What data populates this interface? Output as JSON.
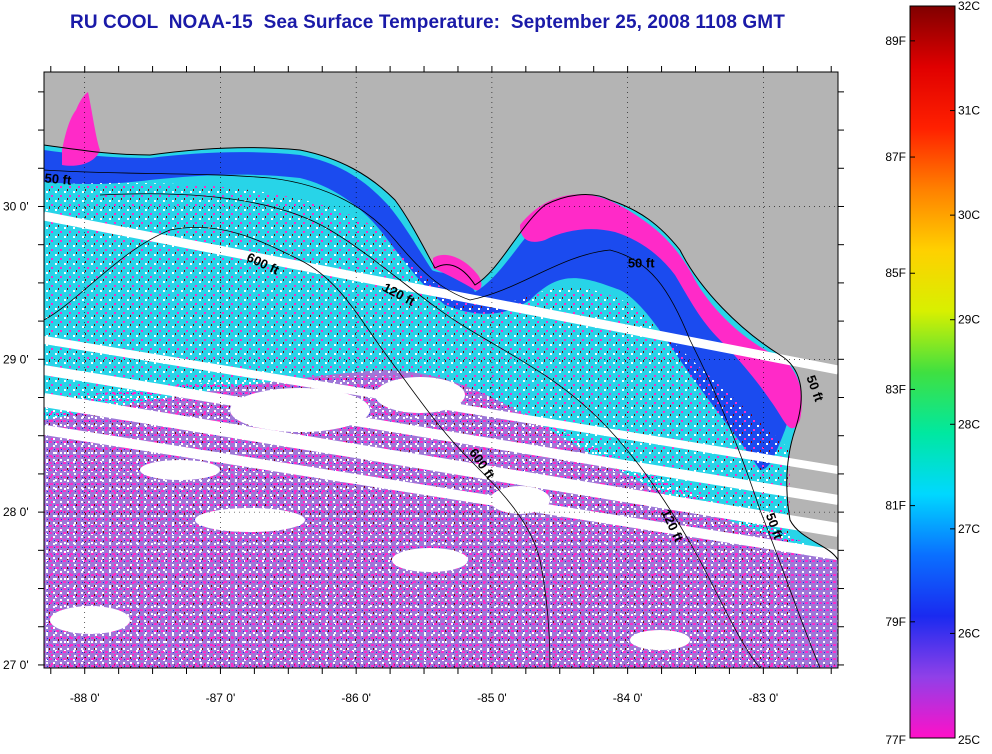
{
  "title": "RU COOL  NOAA-15  Sea Surface Temperature:  September 25, 2008 1108 GMT",
  "map": {
    "lon_range": [
      -88.3,
      -82.45
    ],
    "lat_range": [
      26.98,
      30.88
    ],
    "lon_ticks": [
      {
        "value": -88,
        "label": "-88 0'"
      },
      {
        "value": -87,
        "label": "-87 0'"
      },
      {
        "value": -86,
        "label": "-86 0'"
      },
      {
        "value": -85,
        "label": "-85 0'"
      },
      {
        "value": -84,
        "label": "-84 0'"
      },
      {
        "value": -83,
        "label": "-83 0'"
      }
    ],
    "lat_ticks": [
      {
        "value": 27,
        "label": "27 0'"
      },
      {
        "value": 28,
        "label": "28 0'"
      },
      {
        "value": 29,
        "label": "29 0'"
      },
      {
        "value": 30,
        "label": "30 0'"
      }
    ],
    "grid": "dotted",
    "land_color": "#b4b4b4",
    "cloud_color": "#ffffff",
    "depth_contours": [
      {
        "label": "50 ft",
        "lon": -88.2,
        "lat": 30.15,
        "angle": 5
      },
      {
        "label": "600 ft",
        "lon": -86.7,
        "lat": 29.6,
        "angle": 25
      },
      {
        "label": "120 ft",
        "lon": -85.7,
        "lat": 29.4,
        "angle": 28
      },
      {
        "label": "50 ft",
        "lon": -83.9,
        "lat": 29.6,
        "angle": 0
      },
      {
        "label": "600 ft",
        "lon": -85.1,
        "lat": 28.3,
        "angle": 55
      },
      {
        "label": "120 ft",
        "lon": -83.7,
        "lat": 27.9,
        "angle": 65
      },
      {
        "label": "50 ft",
        "lon": -82.95,
        "lat": 27.9,
        "angle": 70
      },
      {
        "label": "50 ft",
        "lon": -82.65,
        "lat": 28.8,
        "angle": 70
      }
    ]
  },
  "colorbar": {
    "c_ticks": [
      {
        "value": 32,
        "label": "32C"
      },
      {
        "value": 31,
        "label": "31C"
      },
      {
        "value": 30,
        "label": "30C"
      },
      {
        "value": 29,
        "label": "29C"
      },
      {
        "value": 28,
        "label": "28C"
      },
      {
        "value": 27,
        "label": "27C"
      },
      {
        "value": 26,
        "label": "26C"
      },
      {
        "value": 25,
        "label": "25C"
      }
    ],
    "f_ticks": [
      {
        "value": 89,
        "label": "89F"
      },
      {
        "value": 87,
        "label": "87F"
      },
      {
        "value": 85,
        "label": "85F"
      },
      {
        "value": 83,
        "label": "83F"
      },
      {
        "value": 81,
        "label": "81F"
      },
      {
        "value": 79,
        "label": "79F"
      },
      {
        "value": 77,
        "label": "77F"
      }
    ],
    "c_range": [
      25,
      32
    ],
    "colors": [
      "#ff10c8",
      "#9040e8",
      "#1a2af0",
      "#0a70ff",
      "#00d8ff",
      "#00e8a0",
      "#40e040",
      "#d8f000",
      "#ffd000",
      "#ff8000",
      "#ff2000",
      "#e00000",
      "#800000"
    ]
  }
}
